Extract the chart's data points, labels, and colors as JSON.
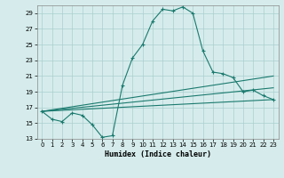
{
  "xlabel": "Humidex (Indice chaleur)",
  "bg_color": "#d6ecec",
  "grid_color": "#aacfcf",
  "line_color": "#1a7a6e",
  "xlim": [
    -0.5,
    23.5
  ],
  "ylim": [
    13,
    30
  ],
  "yticks": [
    13,
    15,
    17,
    19,
    21,
    23,
    25,
    27,
    29
  ],
  "xticks": [
    0,
    1,
    2,
    3,
    4,
    5,
    6,
    7,
    8,
    9,
    10,
    11,
    12,
    13,
    14,
    15,
    16,
    17,
    18,
    19,
    20,
    21,
    22,
    23
  ],
  "curve1_x": [
    0,
    1,
    2,
    3,
    4,
    5,
    6,
    7,
    8,
    9,
    10,
    11,
    12,
    13,
    14,
    15,
    16,
    17,
    18,
    19,
    20,
    21,
    22,
    23
  ],
  "curve1_y": [
    16.5,
    15.5,
    15.2,
    16.3,
    16.0,
    14.8,
    13.2,
    13.4,
    19.8,
    23.3,
    25.0,
    28.0,
    29.5,
    29.3,
    29.8,
    29.0,
    24.2,
    21.5,
    21.3,
    20.8,
    19.0,
    19.2,
    18.5,
    18.0
  ],
  "curve2_x": [
    0,
    23
  ],
  "curve2_y": [
    16.5,
    18.0
  ],
  "curve3_x": [
    0,
    23
  ],
  "curve3_y": [
    16.5,
    19.5
  ],
  "curve4_x": [
    0,
    23
  ],
  "curve4_y": [
    16.5,
    21.0
  ]
}
